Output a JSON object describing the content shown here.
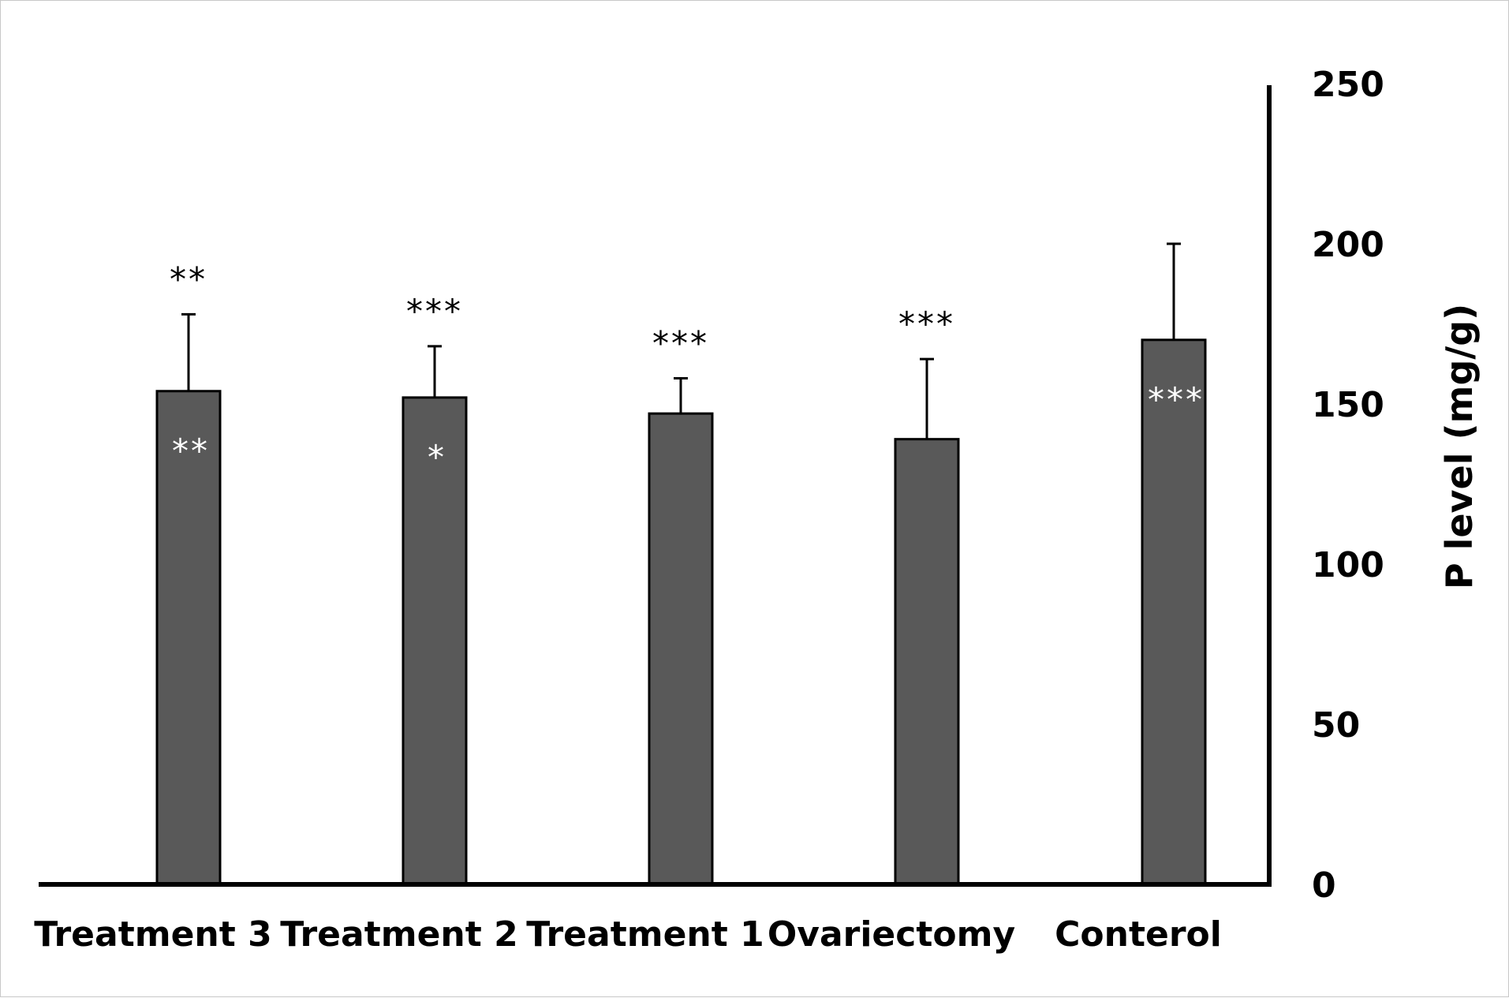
{
  "chart_data": {
    "type": "bar",
    "categories": [
      "Treatment 3",
      "Treatment 2",
      "Treatment 1",
      "Ovariectomy",
      "Conterol"
    ],
    "values": [
      154,
      152,
      147,
      139,
      170
    ],
    "error_upper": [
      178,
      168,
      158,
      164,
      200
    ],
    "sig_above": [
      "**",
      "***",
      "***",
      "***",
      ""
    ],
    "sig_inside": [
      "**",
      "*",
      "",
      "",
      "***"
    ],
    "ylabel": "P level (mg/g)",
    "ylim": [
      0,
      250
    ],
    "yticks": [
      "0",
      "50",
      "100",
      "150",
      "200",
      "250"
    ],
    "y_axis_side": "right",
    "grid": false,
    "colors": {
      "bar": "#595959",
      "bar_stroke": "#000000",
      "axis": "#000000",
      "sig_inside": "#ffffff",
      "sig_above": "#000000"
    }
  }
}
